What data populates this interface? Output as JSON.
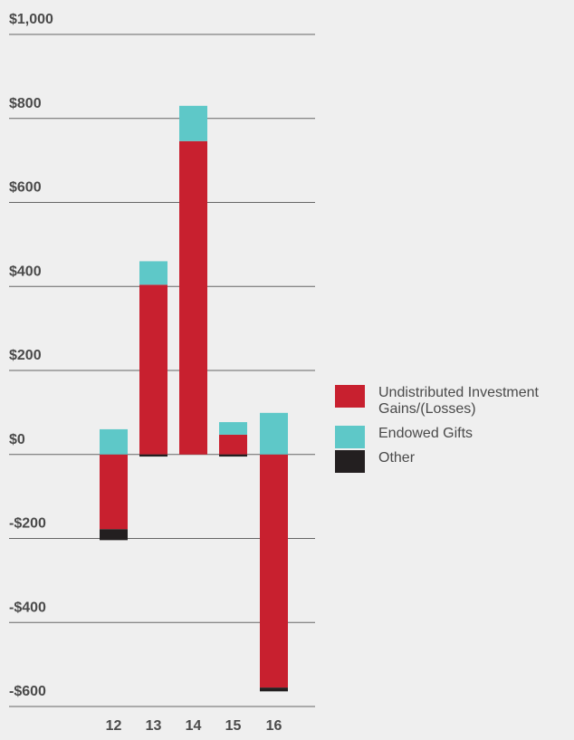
{
  "chart_data": {
    "type": "stacked_bar",
    "categories": [
      "12",
      "13",
      "14",
      "15",
      "16"
    ],
    "series": [
      {
        "name": "Undistributed Investment Gains/(Losses)",
        "color": "#c8202f",
        "values": [
          -178,
          404,
          746,
          47,
          -555
        ]
      },
      {
        "name": "Endowed Gifts",
        "color": "#5ec8c8",
        "values": [
          60,
          56,
          84,
          30,
          99
        ]
      },
      {
        "name": "Other",
        "color": "#231f20",
        "values": [
          -26,
          -5,
          0,
          -5,
          -9
        ]
      }
    ],
    "ylim": [
      -600,
      1000
    ],
    "yticks": [
      {
        "value": -600,
        "label": "-$600"
      },
      {
        "value": -400,
        "label": "-$400"
      },
      {
        "value": -200,
        "label": "-$200"
      },
      {
        "value": 0,
        "label": "$0"
      },
      {
        "value": 200,
        "label": "$200"
      },
      {
        "value": 400,
        "label": "$400"
      },
      {
        "value": 600,
        "label": "$600"
      },
      {
        "value": 800,
        "label": "$800"
      },
      {
        "value": 1000,
        "label": "$1,000"
      }
    ],
    "grid": true
  }
}
